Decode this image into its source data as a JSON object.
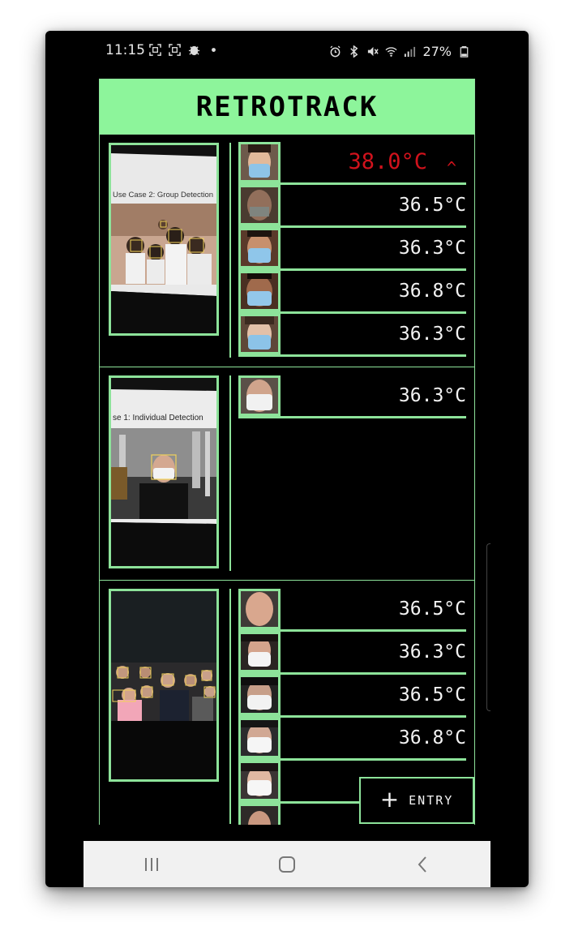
{
  "status": {
    "time": "11:15",
    "battery": "27%",
    "left_icons": [
      "screenshot-icon",
      "screenshot-icon",
      "bug-icon",
      "dot-icon"
    ],
    "right_icons": [
      "alarm-icon",
      "bluetooth-icon",
      "mute-icon",
      "wifi-icon",
      "signal-icon",
      "battery-icon"
    ]
  },
  "app": {
    "title": "RETROTRACK",
    "accent": "#8df59b",
    "alert_color": "#d0121c"
  },
  "entries": [
    {
      "snapshot_caption": "Use Case 2: Group Detection",
      "readings": [
        {
          "temp": "38.0°C",
          "alert": true,
          "indicator": "^"
        },
        {
          "temp": "36.5°C"
        },
        {
          "temp": "36.3°C"
        },
        {
          "temp": "36.8°C"
        },
        {
          "temp": "36.3°C"
        }
      ]
    },
    {
      "snapshot_caption": "se 1: Individual Detection",
      "readings": [
        {
          "temp": "36.3°C"
        }
      ]
    },
    {
      "snapshot_caption": "",
      "readings": [
        {
          "temp": "36.5°C"
        },
        {
          "temp": "36.3°C"
        },
        {
          "temp": "36.5°C"
        },
        {
          "temp": "36.8°C"
        },
        {
          "temp": ""
        },
        {
          "temp": ""
        }
      ]
    }
  ],
  "fab": {
    "icon": "plus-icon",
    "label": "ENTRY"
  },
  "navbar": {
    "buttons": [
      "recents-icon",
      "home-icon",
      "back-icon"
    ]
  }
}
